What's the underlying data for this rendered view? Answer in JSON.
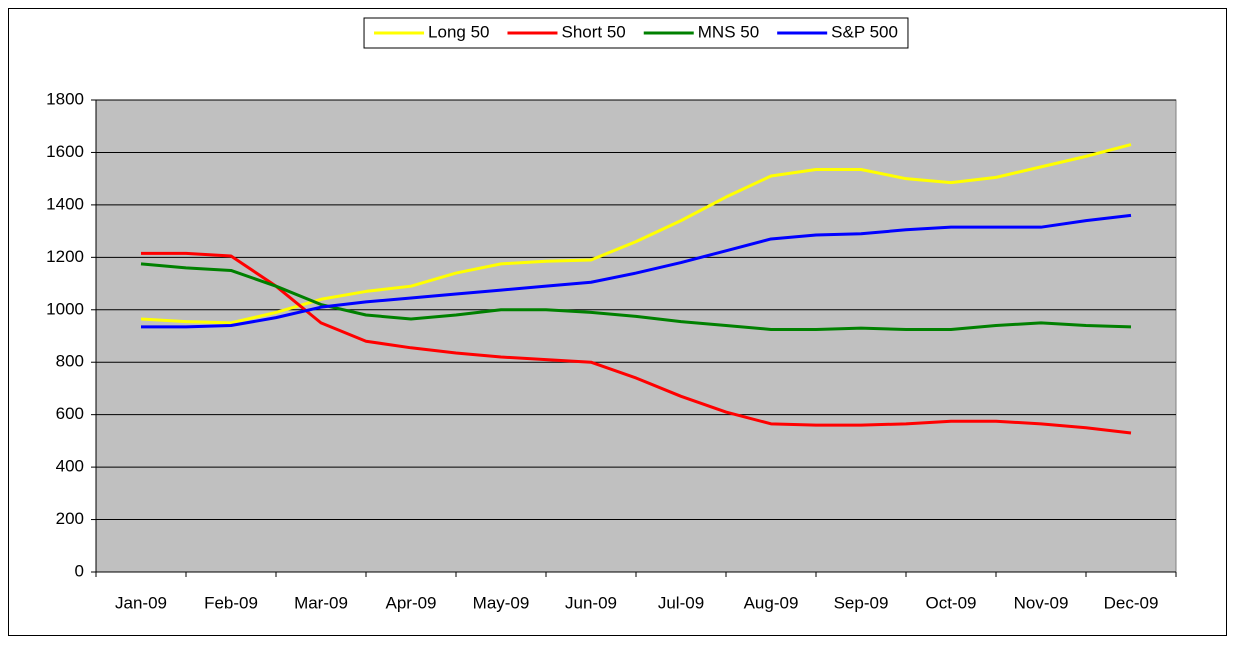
{
  "chart_data": {
    "type": "line",
    "categories": [
      "Jan-09",
      null,
      "Feb-09",
      null,
      "Mar-09",
      null,
      "Apr-09",
      null,
      "May-09",
      null,
      "Jun-09",
      null,
      "Jul-09",
      null,
      "Aug-09",
      null,
      "Sep-09",
      null,
      "Oct-09",
      null,
      "Nov-09",
      null,
      "Dec-09"
    ],
    "series": [
      {
        "name": "Long 50",
        "color": "#ffff00",
        "values": [
          965,
          955,
          950,
          990,
          1040,
          1070,
          1090,
          1140,
          1175,
          1185,
          1190,
          1260,
          1340,
          1430,
          1510,
          1535,
          1535,
          1500,
          1485,
          1505,
          1545,
          1585,
          1630
        ]
      },
      {
        "name": "Short 50",
        "color": "#ff0000",
        "values": [
          1215,
          1215,
          1205,
          1090,
          950,
          880,
          855,
          835,
          820,
          810,
          800,
          740,
          670,
          610,
          565,
          560,
          560,
          565,
          575,
          575,
          565,
          550,
          530
        ]
      },
      {
        "name": "MNS 50",
        "color": "#008000",
        "values": [
          1175,
          1160,
          1150,
          1090,
          1020,
          980,
          965,
          980,
          1000,
          1000,
          990,
          975,
          955,
          940,
          925,
          925,
          930,
          925,
          925,
          940,
          950,
          940,
          935
        ]
      },
      {
        "name": "S&P 500",
        "color": "#0000ff",
        "values": [
          935,
          935,
          940,
          970,
          1010,
          1030,
          1045,
          1060,
          1075,
          1090,
          1105,
          1140,
          1180,
          1225,
          1270,
          1285,
          1290,
          1305,
          1315,
          1315,
          1315,
          1340,
          1360
        ]
      }
    ],
    "ylim": [
      0,
      1800
    ],
    "yticks": [
      0,
      200,
      400,
      600,
      800,
      1000,
      1200,
      1400,
      1600,
      1800
    ],
    "grid": true,
    "legend": "top",
    "plot_background": "#c0c0c0"
  }
}
